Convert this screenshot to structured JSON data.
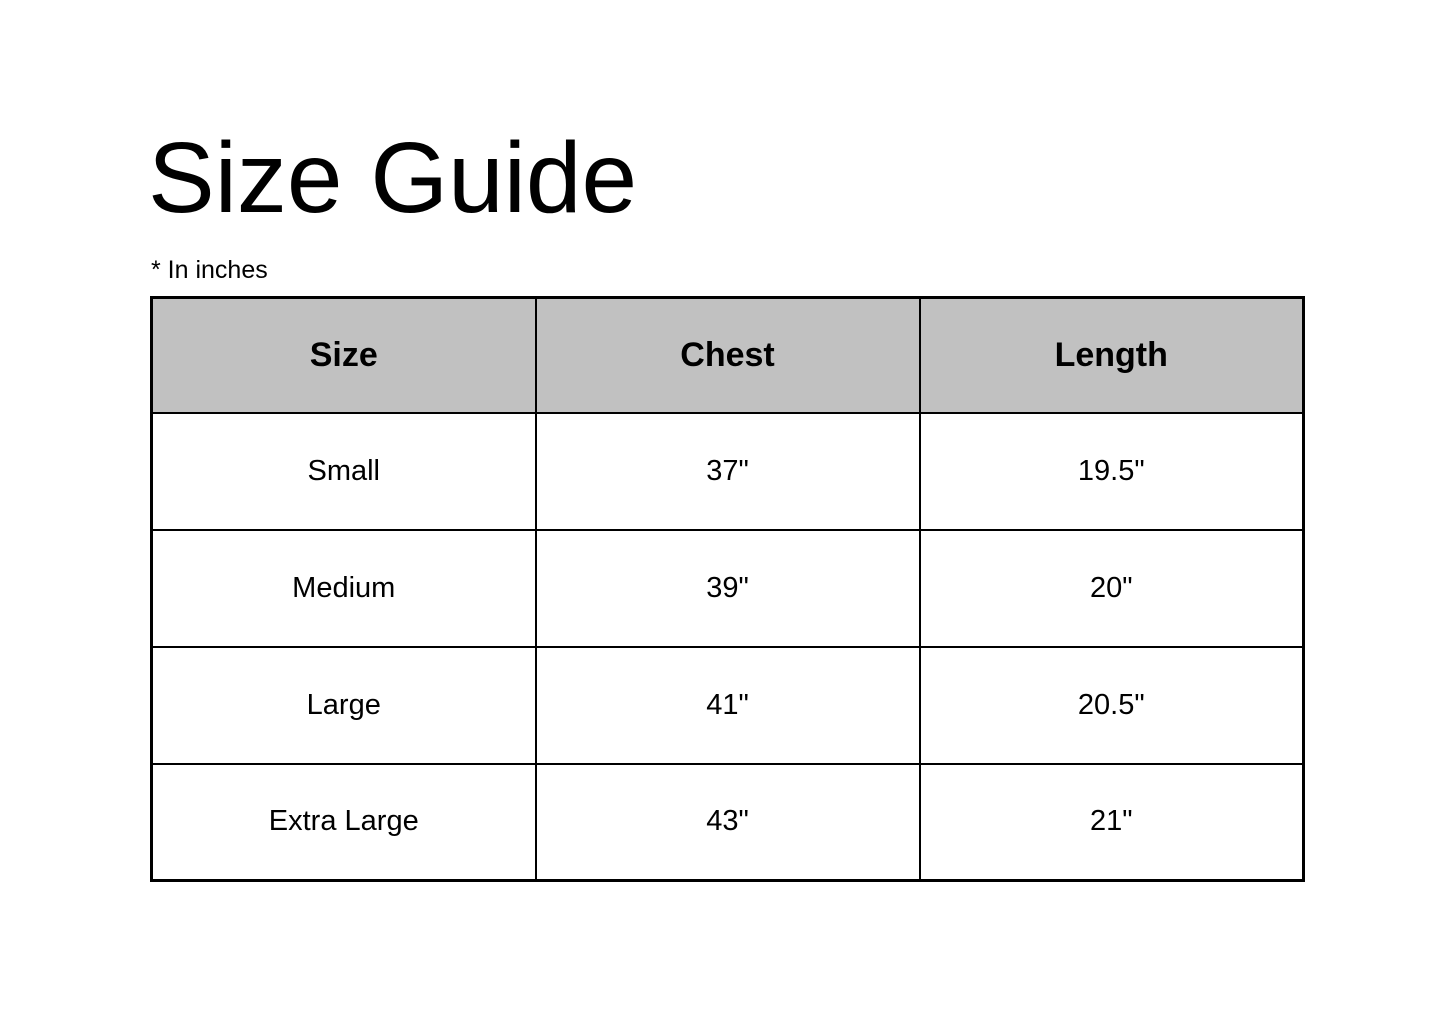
{
  "page": {
    "title": "Size Guide",
    "note": "* In inches"
  },
  "table": {
    "columns": [
      "Size",
      "Chest",
      "Length"
    ],
    "column_keys": [
      "size",
      "chest",
      "length"
    ],
    "rows": [
      [
        "Small",
        "37\"",
        "19.5\""
      ],
      [
        "Medium",
        "39\"",
        "20\""
      ],
      [
        "Large",
        "41\"",
        "20.5\""
      ],
      [
        "Extra Large",
        "43\"",
        "21\""
      ]
    ]
  },
  "colors": {
    "background": "#ffffff",
    "header_background": "#c1c1c1",
    "border": "#000000",
    "text": "#000000"
  },
  "chart_data": {
    "type": "table",
    "title": "Size Guide",
    "note": "* In inches",
    "columns": [
      "Size",
      "Chest",
      "Length"
    ],
    "rows": [
      {
        "size": "Small",
        "chest_in": 37,
        "length_in": 19.5
      },
      {
        "size": "Medium",
        "chest_in": 39,
        "length_in": 20
      },
      {
        "size": "Large",
        "chest_in": 41,
        "length_in": 20.5
      },
      {
        "size": "Extra Large",
        "chest_in": 43,
        "length_in": 21
      }
    ]
  }
}
